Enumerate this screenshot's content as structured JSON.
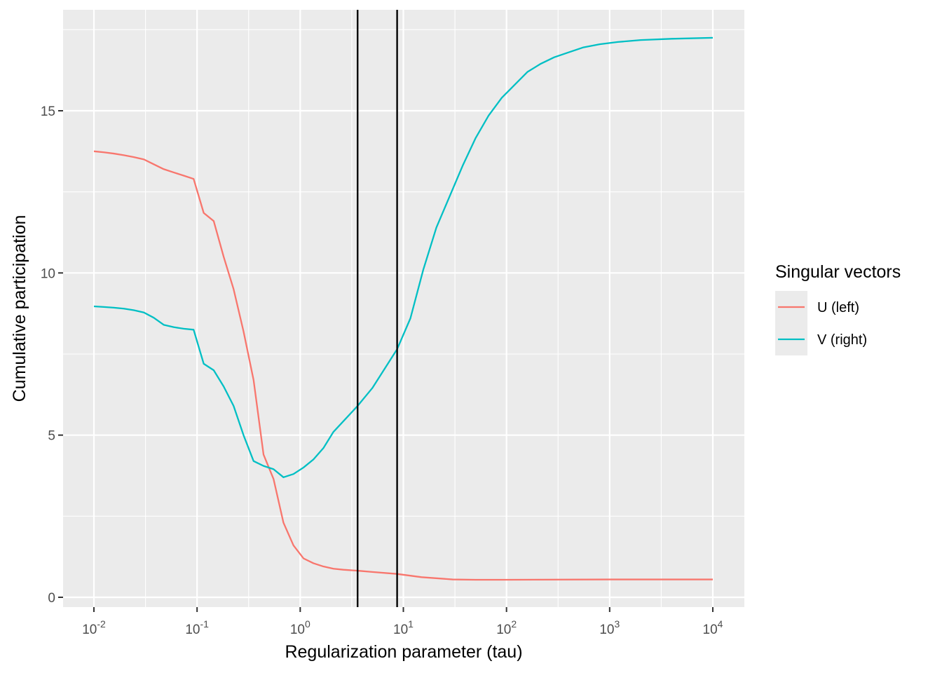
{
  "chart_data": {
    "type": "line",
    "title": "",
    "xlabel": "Regularization parameter (tau)",
    "ylabel": "Cumulative participation",
    "x_scale": "log10",
    "xlim": [
      0.01,
      10000
    ],
    "ylim": [
      0,
      17.2
    ],
    "x_ticks": [
      {
        "value": 0.01,
        "base": "10",
        "exp": "-2"
      },
      {
        "value": 0.1,
        "base": "10",
        "exp": "-1"
      },
      {
        "value": 1,
        "base": "10",
        "exp": "0"
      },
      {
        "value": 10,
        "base": "10",
        "exp": "1"
      },
      {
        "value": 100,
        "base": "10",
        "exp": "2"
      },
      {
        "value": 1000,
        "base": "10",
        "exp": "3"
      },
      {
        "value": 10000,
        "base": "10",
        "exp": "4"
      }
    ],
    "y_ticks": [
      {
        "value": 0,
        "label": "0"
      },
      {
        "value": 5,
        "label": "5"
      },
      {
        "value": 10,
        "label": "10"
      },
      {
        "value": 15,
        "label": "15"
      }
    ],
    "grid": true,
    "vlines": [
      3.6,
      8.7
    ],
    "vline_color": "#000000",
    "panel_background": "#ebebeb",
    "grid_color": "#ffffff",
    "legend": {
      "title": "Singular vectors",
      "position": "right"
    },
    "series": [
      {
        "name": "U (left)",
        "color": "#F8766D",
        "points": [
          [
            0.01,
            13.75
          ],
          [
            0.0125,
            13.72
          ],
          [
            0.0156,
            13.68
          ],
          [
            0.0195,
            13.63
          ],
          [
            0.0244,
            13.57
          ],
          [
            0.0305,
            13.5
          ],
          [
            0.038,
            13.35
          ],
          [
            0.0475,
            13.2
          ],
          [
            0.0593,
            13.1
          ],
          [
            0.0741,
            13.0
          ],
          [
            0.0926,
            12.9
          ],
          [
            0.116,
            11.85
          ],
          [
            0.145,
            11.6
          ],
          [
            0.181,
            10.5
          ],
          [
            0.226,
            9.5
          ],
          [
            0.282,
            8.2
          ],
          [
            0.353,
            6.7
          ],
          [
            0.441,
            4.4
          ],
          [
            0.551,
            3.65
          ],
          [
            0.688,
            2.3
          ],
          [
            0.86,
            1.6
          ],
          [
            1.075,
            1.2
          ],
          [
            1.343,
            1.05
          ],
          [
            1.678,
            0.95
          ],
          [
            2.1,
            0.88
          ],
          [
            2.62,
            0.85
          ],
          [
            3.6,
            0.82
          ],
          [
            5,
            0.78
          ],
          [
            8.7,
            0.72
          ],
          [
            15,
            0.62
          ],
          [
            30,
            0.55
          ],
          [
            50,
            0.54
          ],
          [
            100,
            0.54
          ],
          [
            1000,
            0.55
          ],
          [
            10000,
            0.55
          ]
        ]
      },
      {
        "name": "V (right)",
        "color": "#00BFC4",
        "points": [
          [
            0.01,
            8.97
          ],
          [
            0.0125,
            8.95
          ],
          [
            0.0156,
            8.93
          ],
          [
            0.0195,
            8.9
          ],
          [
            0.0244,
            8.85
          ],
          [
            0.0305,
            8.78
          ],
          [
            0.038,
            8.62
          ],
          [
            0.0475,
            8.4
          ],
          [
            0.0593,
            8.33
          ],
          [
            0.0741,
            8.28
          ],
          [
            0.0926,
            8.25
          ],
          [
            0.116,
            7.2
          ],
          [
            0.145,
            7.0
          ],
          [
            0.181,
            6.5
          ],
          [
            0.226,
            5.9
          ],
          [
            0.282,
            5.0
          ],
          [
            0.353,
            4.2
          ],
          [
            0.441,
            4.05
          ],
          [
            0.551,
            3.95
          ],
          [
            0.688,
            3.7
          ],
          [
            0.86,
            3.8
          ],
          [
            1.075,
            4.0
          ],
          [
            1.343,
            4.25
          ],
          [
            1.678,
            4.6
          ],
          [
            2.1,
            5.1
          ],
          [
            3.6,
            5.9
          ],
          [
            5,
            6.45
          ],
          [
            8.7,
            7.65
          ],
          [
            11.7,
            8.6
          ],
          [
            15.6,
            10.1
          ],
          [
            20.9,
            11.4
          ],
          [
            28.0,
            12.35
          ],
          [
            37.5,
            13.3
          ],
          [
            50,
            14.15
          ],
          [
            67,
            14.85
          ],
          [
            90,
            15.4
          ],
          [
            120,
            15.8
          ],
          [
            160,
            16.2
          ],
          [
            215,
            16.45
          ],
          [
            290,
            16.65
          ],
          [
            400,
            16.8
          ],
          [
            550,
            16.95
          ],
          [
            800,
            17.05
          ],
          [
            1200,
            17.12
          ],
          [
            2000,
            17.18
          ],
          [
            4000,
            17.22
          ],
          [
            10000,
            17.25
          ]
        ]
      }
    ]
  }
}
